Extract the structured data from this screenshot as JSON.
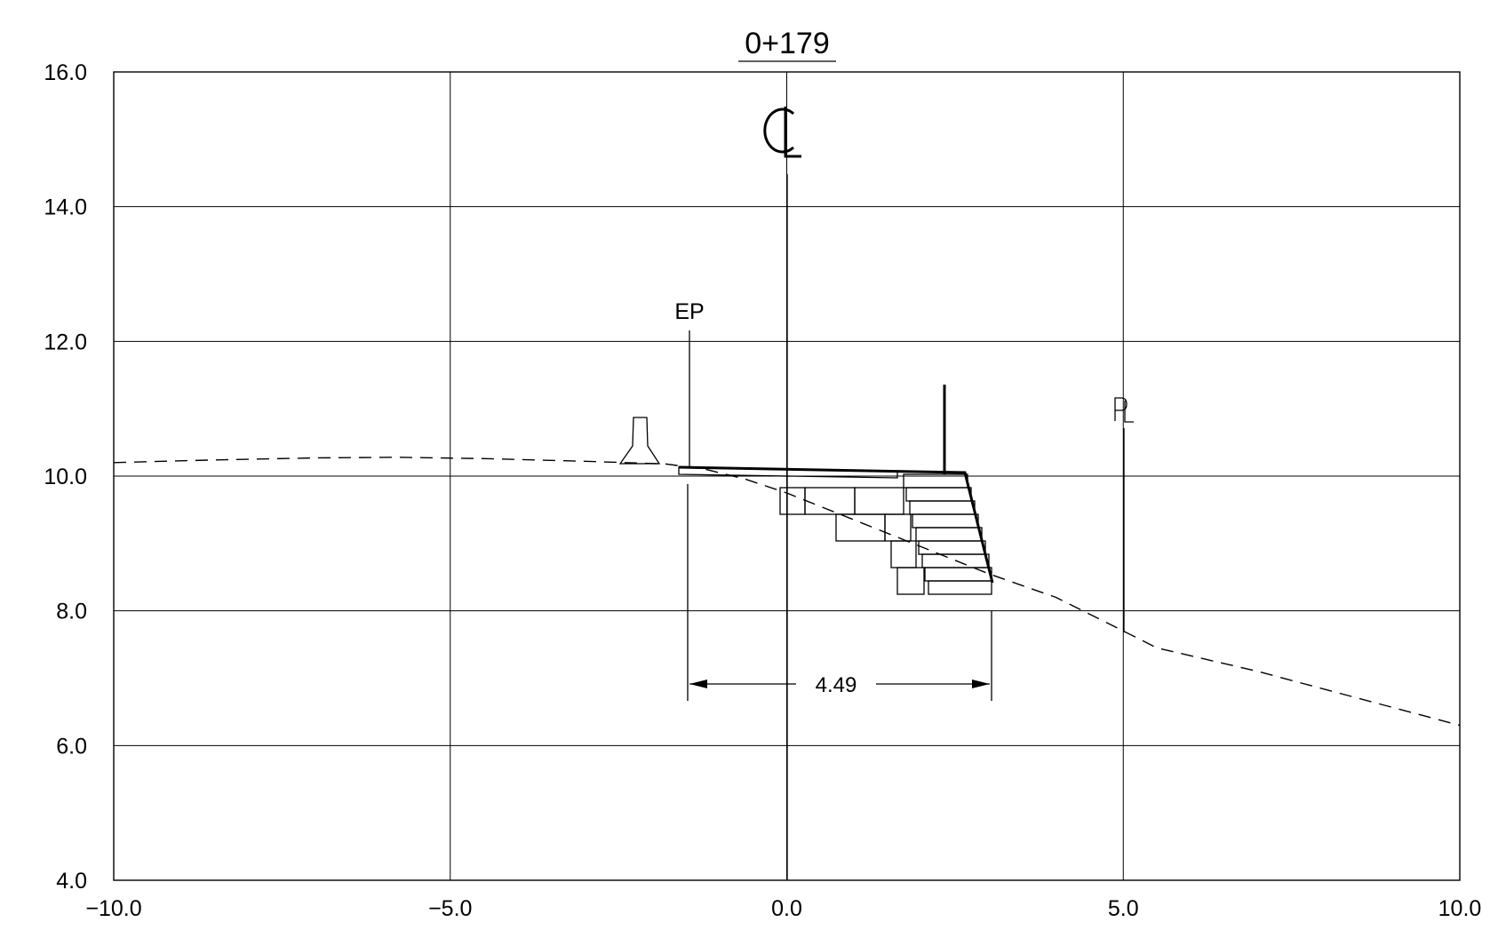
{
  "chart_data": {
    "type": "line",
    "title": "0+179",
    "xlabel": "",
    "ylabel": "",
    "xlim": [
      -10.0,
      10.0
    ],
    "ylim": [
      4.0,
      16.0
    ],
    "x_ticks": [
      "−10.0",
      "−5.0",
      "0.0",
      "5.0",
      "10.0"
    ],
    "y_ticks": [
      "4.0",
      "6.0",
      "8.0",
      "10.0",
      "12.0",
      "14.0",
      "16.0"
    ],
    "grid": true,
    "series": [
      {
        "style": "dashed",
        "x": [
          -10.0,
          -8.5,
          -7.0,
          -5.8,
          -4.5,
          -3.0,
          -1.8,
          -1.2,
          -0.6,
          0.0,
          1.0,
          2.0,
          3.0,
          4.0,
          5.0,
          5.5,
          7.0,
          8.5,
          10.0
        ],
        "y": [
          10.2,
          10.24,
          10.27,
          10.28,
          10.26,
          10.22,
          10.18,
          10.1,
          9.95,
          9.75,
          9.35,
          8.95,
          8.55,
          8.2,
          7.7,
          7.45,
          7.1,
          6.7,
          6.3
        ]
      }
    ],
    "annotations": {
      "centerline_symbol": "CL",
      "edge_of_pavement": "EP",
      "property_line": "PL",
      "dimension": "4.49"
    }
  }
}
